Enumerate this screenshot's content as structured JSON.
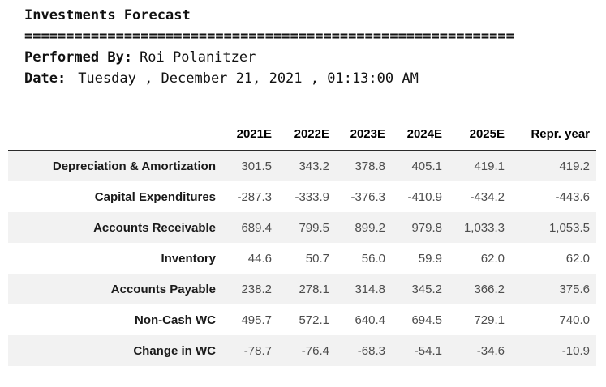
{
  "header": {
    "title": "Investments Forecast",
    "separator": "===========================================================",
    "performed_by_label": "Performed By:",
    "performed_by_value": "Roi Polanitzer",
    "date_label": "Date:",
    "date_value": "Tuesday , December 21, 2021 , 01:13:00 AM"
  },
  "table": {
    "columns": [
      "2021E",
      "2022E",
      "2023E",
      "2024E",
      "2025E",
      "Repr. year"
    ],
    "rows": [
      {
        "label": "Depreciation & Amortization",
        "values": [
          "301.5",
          "343.2",
          "378.8",
          "405.1",
          "419.1",
          "419.2"
        ]
      },
      {
        "label": "Capital Expenditures",
        "values": [
          "-287.3",
          "-333.9",
          "-376.3",
          "-410.9",
          "-434.2",
          "-443.6"
        ]
      },
      {
        "label": "Accounts Receivable",
        "values": [
          "689.4",
          "799.5",
          "899.2",
          "979.8",
          "1,033.3",
          "1,053.5"
        ]
      },
      {
        "label": "Inventory",
        "values": [
          "44.6",
          "50.7",
          "56.0",
          "59.9",
          "62.0",
          "62.0"
        ]
      },
      {
        "label": "Accounts Payable",
        "values": [
          "238.2",
          "278.1",
          "314.8",
          "345.2",
          "366.2",
          "375.6"
        ]
      },
      {
        "label": "Non-Cash WC",
        "values": [
          "495.7",
          "572.1",
          "640.4",
          "694.5",
          "729.1",
          "740.0"
        ]
      },
      {
        "label": "Change in WC",
        "values": [
          "-78.7",
          "-76.4",
          "-68.3",
          "-54.1",
          "-34.6",
          "-10.9"
        ]
      }
    ]
  },
  "colors": {
    "background": "#ffffff",
    "header_text": "#111111",
    "column_header_text": "#000000",
    "row_label_text": "#1a1a1a",
    "value_text": "#4d4d4d",
    "stripe_background": "#f2f2f2",
    "divider_line": "#2b2b2b"
  }
}
